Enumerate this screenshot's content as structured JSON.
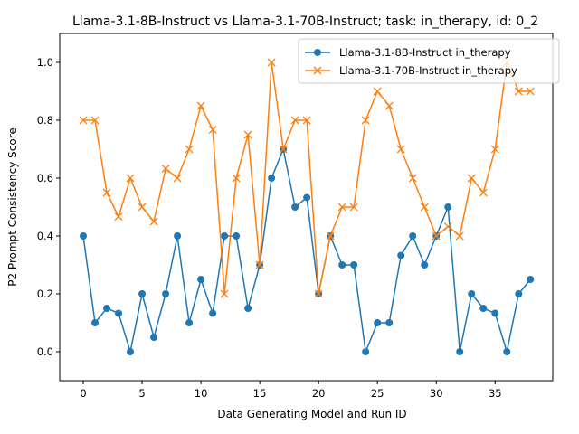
{
  "chart_data": {
    "type": "line",
    "title": "Llama-3.1-8B-Instruct vs Llama-3.1-70B-Instruct; task: in_therapy, id: 0_2",
    "xlabel": "Data Generating Model and Run ID",
    "ylabel": "P2 Prompt Consistency Score",
    "xlim": [
      -2.0,
      39.9
    ],
    "ylim": [
      -0.1,
      1.1
    ],
    "xticks": [
      0,
      5,
      10,
      15,
      20,
      25,
      30,
      35
    ],
    "yticks": [
      0.0,
      0.2,
      0.4,
      0.6,
      0.8,
      1.0
    ],
    "xtick_labels": [
      "0",
      "5",
      "10",
      "15",
      "20",
      "25",
      "30",
      "35"
    ],
    "ytick_labels": [
      "0.0",
      "0.2",
      "0.4",
      "0.6",
      "0.8",
      "1.0"
    ],
    "grid": false,
    "legend_position": "top-right",
    "x": [
      0,
      1,
      2,
      3,
      4,
      5,
      6,
      7,
      8,
      9,
      10,
      11,
      12,
      13,
      14,
      15,
      16,
      17,
      18,
      19,
      20,
      21,
      22,
      23,
      24,
      25,
      26,
      27,
      28,
      29,
      30,
      31,
      32,
      33,
      34,
      35,
      36,
      37,
      38
    ],
    "series": [
      {
        "name": "Llama-3.1-8B-Instruct in_therapy",
        "color": "#1f77b4",
        "marker": "circle",
        "values": [
          0.4,
          0.1,
          0.15,
          0.133,
          0.0,
          0.2,
          0.05,
          0.2,
          0.4,
          0.1,
          0.25,
          0.133,
          0.4,
          0.4,
          0.15,
          0.3,
          0.6,
          0.7,
          0.5,
          0.533,
          0.2,
          0.4,
          0.3,
          0.3,
          0.0,
          0.1,
          0.1,
          0.333,
          0.4,
          0.3,
          0.4,
          0.5,
          0.0,
          0.2,
          0.15,
          0.133,
          0.0,
          0.2,
          0.25
        ]
      },
      {
        "name": "Llama-3.1-70B-Instruct in_therapy",
        "color": "#ff7f0e",
        "marker": "x",
        "values": [
          0.8,
          0.8,
          0.55,
          0.467,
          0.6,
          0.5,
          0.45,
          0.633,
          0.6,
          0.7,
          0.85,
          0.767,
          0.2,
          0.6,
          0.75,
          0.3,
          1.0,
          0.7,
          0.8,
          0.8,
          0.2,
          0.4,
          0.5,
          0.5,
          0.8,
          0.9,
          0.85,
          0.7,
          0.6,
          0.5,
          0.4,
          0.433,
          0.4,
          0.6,
          0.55,
          0.7,
          1.0,
          0.9,
          0.9
        ]
      }
    ]
  }
}
